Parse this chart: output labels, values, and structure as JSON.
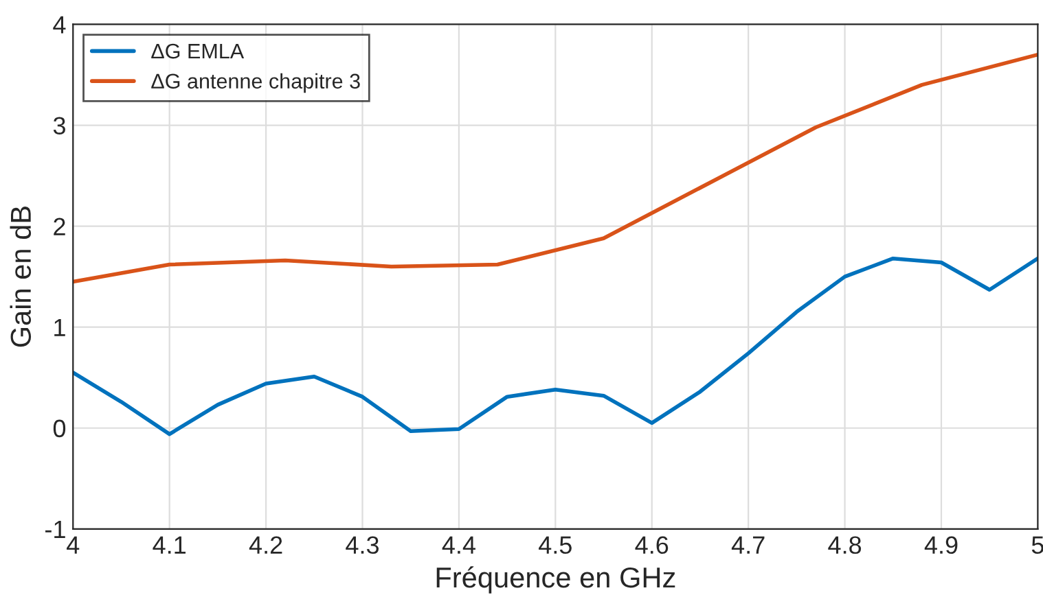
{
  "chart_data": {
    "type": "line",
    "xlabel": "Fréquence en GHz",
    "ylabel": "Gain en dB",
    "series": [
      {
        "name": "ΔG EMLA",
        "color": "#0072bd",
        "x": [
          4,
          4.05,
          4.1,
          4.15,
          4.2,
          4.25,
          4.3,
          4.35,
          4.4,
          4.45,
          4.5,
          4.55,
          4.6,
          4.65,
          4.7,
          4.75,
          4.8,
          4.85,
          4.9,
          4.95,
          5
        ],
        "values": [
          0.55,
          0.26,
          -0.06,
          0.23,
          0.44,
          0.51,
          0.31,
          -0.03,
          -0.01,
          0.31,
          0.38,
          0.32,
          0.05,
          0.36,
          0.74,
          1.15,
          1.5,
          1.68,
          1.64,
          1.37,
          1.68
        ]
      },
      {
        "name": "ΔG antenne chapitre 3",
        "color": "#d95319",
        "x": [
          4,
          4.1,
          4.22,
          4.33,
          4.44,
          4.55,
          4.77,
          4.88,
          5
        ],
        "values": [
          1.45,
          1.62,
          1.66,
          1.6,
          1.62,
          1.88,
          2.98,
          3.4,
          3.7
        ]
      }
    ],
    "xlim": [
      4,
      5
    ],
    "xticks": [
      4,
      4.1,
      4.2,
      4.3,
      4.4,
      4.5,
      4.6,
      4.7,
      4.8,
      4.9,
      5
    ],
    "ylim": [
      -1,
      4
    ],
    "yticks": [
      -1,
      0,
      1,
      2,
      3,
      4
    ],
    "grid": true,
    "legend": "top left",
    "marker": "none",
    "line_style": "solid"
  }
}
